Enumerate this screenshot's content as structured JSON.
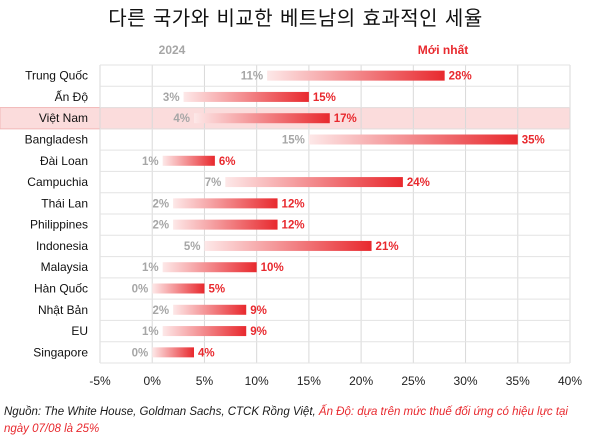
{
  "title": "다른 국가와 비교한 베트남의 효과적인 세율",
  "legend": {
    "baseline_label": "2024",
    "latest_label": "Mới nhất",
    "baseline_color": "#a6a6a6",
    "latest_color": "#e8292e"
  },
  "highlight_color": "#fbdcdc",
  "chart_data": {
    "type": "bar",
    "orientation": "horizontal",
    "title": "다른 국가와 비교한 베트남의 효과적인 세율",
    "categories": [
      "Trung Quốc",
      "Ấn Độ",
      "Việt Nam",
      "Bangladesh",
      "Đài Loan",
      "Campuchia",
      "Thái Lan",
      "Philippines",
      "Indonesia",
      "Malaysia",
      "Hàn Quốc",
      "Nhật Bản",
      "EU",
      "Singapore"
    ],
    "series": [
      {
        "name": "2024",
        "values": [
          11,
          3,
          4,
          15,
          1,
          7,
          2,
          2,
          5,
          1,
          0,
          2,
          1,
          0
        ]
      },
      {
        "name": "Mới nhất",
        "values": [
          28,
          15,
          17,
          35,
          6,
          24,
          12,
          12,
          21,
          10,
          5,
          9,
          9,
          4
        ]
      }
    ],
    "xlim": [
      -5,
      40
    ],
    "xticks": [
      -5,
      0,
      5,
      10,
      15,
      20,
      25,
      30,
      35,
      40
    ],
    "tick_format": "%",
    "grid": true,
    "highlight_category": "Việt Nam"
  },
  "source": {
    "part1": "Nguồn: The White House, Goldman Sachs, CTCK Rồng Việt, ",
    "part2": "Ấn Độ: dựa trên mức thuế đối ứng có hiệu lực tại ngày 07/08 là 25%"
  }
}
